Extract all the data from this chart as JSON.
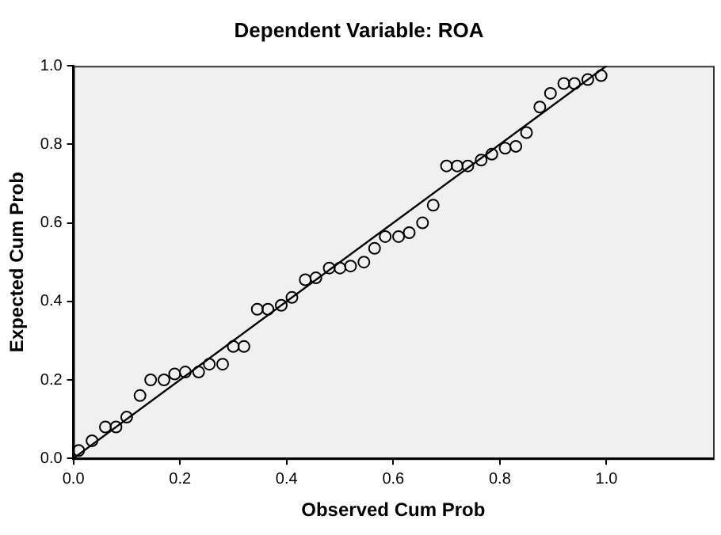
{
  "chart_data": {
    "type": "scatter",
    "title": "Dependent Variable: ROA",
    "xlabel": "Observed Cum Prob",
    "ylabel": "Expected Cum Prob",
    "marker": "circle",
    "grid": false,
    "legend": false,
    "xlim": [
      0,
      1.2
    ],
    "ylim": [
      0,
      1
    ],
    "xticks": [
      {
        "value": 0,
        "label": "0.0"
      },
      {
        "value": 0.2,
        "label": "0.2"
      },
      {
        "value": 0.4,
        "label": "0.4"
      },
      {
        "value": 0.6,
        "label": "0.6"
      },
      {
        "value": 0.8,
        "label": "0.8"
      },
      {
        "value": 1,
        "label": "1.0"
      }
    ],
    "yticks": [
      {
        "value": 0,
        "label": "0.0"
      },
      {
        "value": 0.2,
        "label": "0.2"
      },
      {
        "value": 0.4,
        "label": "0.4"
      },
      {
        "value": 0.6,
        "label": "0.6"
      },
      {
        "value": 0.8,
        "label": "0.8"
      },
      {
        "value": 1,
        "label": "1.0"
      }
    ],
    "series": [
      {
        "color": "#000000",
        "x": [
          0.01,
          0.035,
          0.06,
          0.08,
          0.1,
          0.125,
          0.145,
          0.17,
          0.19,
          0.21,
          0.235,
          0.255,
          0.28,
          0.3,
          0.32,
          0.345,
          0.365,
          0.39,
          0.41,
          0.435,
          0.455,
          0.48,
          0.5,
          0.52,
          0.545,
          0.565,
          0.585,
          0.61,
          0.63,
          0.655,
          0.675,
          0.7,
          0.72,
          0.74,
          0.765,
          0.785,
          0.81,
          0.83,
          0.85,
          0.875,
          0.895,
          0.92,
          0.94,
          0.965,
          0.99
        ],
        "values": [
          0.02,
          0.045,
          0.08,
          0.08,
          0.105,
          0.16,
          0.2,
          0.2,
          0.215,
          0.22,
          0.22,
          0.24,
          0.24,
          0.285,
          0.285,
          0.38,
          0.38,
          0.39,
          0.41,
          0.455,
          0.46,
          0.485,
          0.485,
          0.49,
          0.5,
          0.535,
          0.565,
          0.565,
          0.575,
          0.6,
          0.645,
          0.745,
          0.745,
          0.745,
          0.76,
          0.775,
          0.79,
          0.795,
          0.83,
          0.895,
          0.93,
          0.955,
          0.955,
          0.965,
          0.975
        ]
      },
      {
        "type": "line",
        "marker": "none",
        "color": "#000000",
        "x": [
          0,
          1
        ],
        "values": [
          0,
          1
        ]
      }
    ]
  }
}
